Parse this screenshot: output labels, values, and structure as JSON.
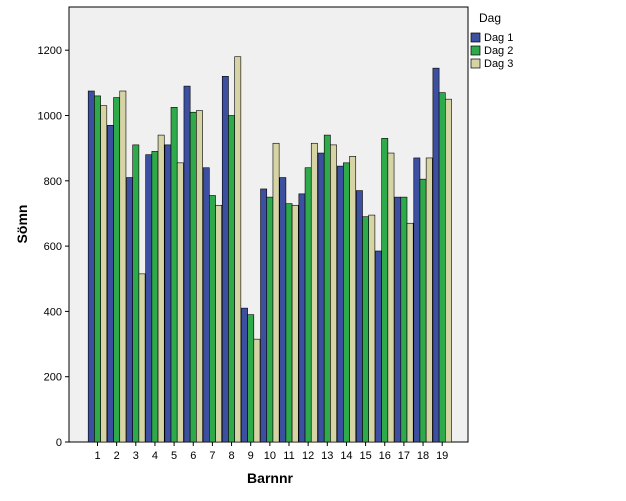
{
  "chart_data": {
    "type": "bar",
    "xlabel": "Barnnr",
    "ylabel": "Sömn",
    "ylim": [
      0,
      1300
    ],
    "yticks": [
      0,
      200,
      400,
      600,
      800,
      1000,
      1200
    ],
    "categories": [
      "1",
      "2",
      "3",
      "4",
      "5",
      "6",
      "7",
      "8",
      "9",
      "10",
      "11",
      "12",
      "13",
      "14",
      "15",
      "16",
      "17",
      "18",
      "19"
    ],
    "legend": {
      "title": "Dag",
      "placement": "right"
    },
    "grid": false,
    "series": [
      {
        "name": "Dag 1",
        "color": "#3c4fa0",
        "values": [
          1075,
          970,
          810,
          880,
          910,
          1090,
          840,
          1120,
          410,
          775,
          810,
          760,
          885,
          845,
          770,
          585,
          750,
          870,
          1145
        ]
      },
      {
        "name": "Dag 2",
        "color": "#2eaa4a",
        "values": [
          1060,
          1055,
          910,
          890,
          1025,
          1010,
          755,
          1000,
          390,
          750,
          730,
          840,
          940,
          855,
          690,
          930,
          750,
          805,
          1070
        ]
      },
      {
        "name": "Dag 3",
        "color": "#d6d4a4",
        "values": [
          1030,
          1075,
          515,
          940,
          855,
          1015,
          725,
          1180,
          315,
          915,
          725,
          915,
          910,
          875,
          695,
          885,
          670,
          870,
          1050
        ]
      }
    ]
  }
}
